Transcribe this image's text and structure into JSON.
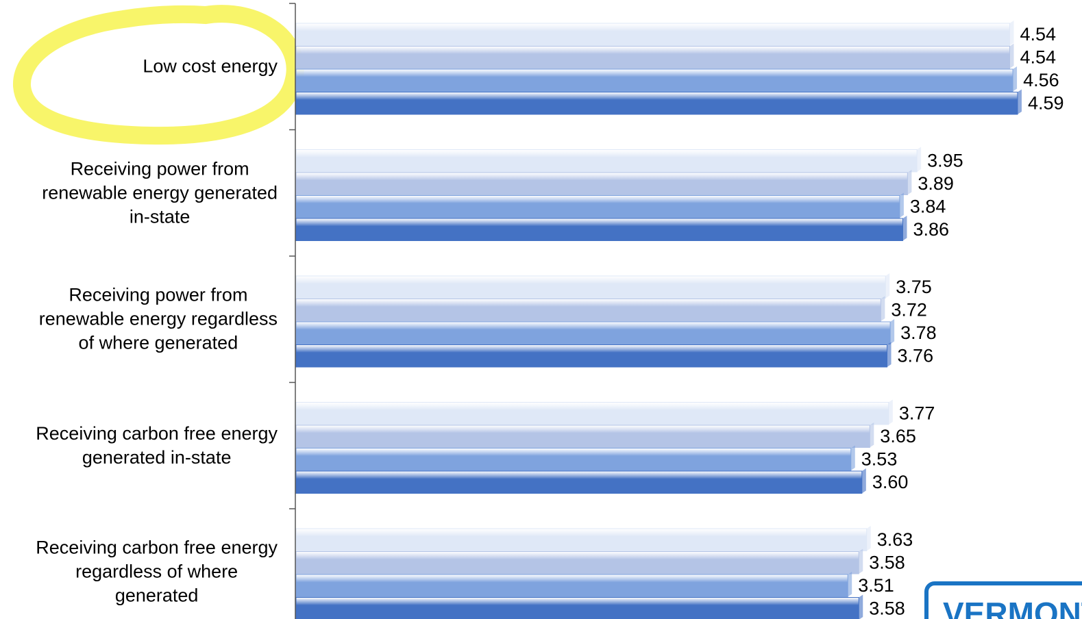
{
  "chart_data": {
    "type": "barh",
    "categories": [
      "Low cost energy",
      "Receiving power from\nrenewable energy generated\nin-state",
      "Receiving power from\nrenewable energy regardless\nof where generated",
      "Receiving carbon free energy\ngenerated in-state",
      "Receiving carbon free energy\nregardless of where\ngenerated"
    ],
    "series": [
      {
        "color": "#dfe8f7",
        "values": [
          4.54,
          3.95,
          3.75,
          3.77,
          3.63
        ],
        "value_labels": [
          "4.54",
          "3.95",
          "3.75",
          "3.77",
          "3.63"
        ]
      },
      {
        "color": "#b4c4e6",
        "values": [
          4.54,
          3.89,
          3.72,
          3.65,
          3.58
        ],
        "value_labels": [
          "4.54",
          "3.89",
          "3.72",
          "3.65",
          "3.58"
        ]
      },
      {
        "color": "#7fa3de",
        "values": [
          4.56,
          3.84,
          3.78,
          3.53,
          3.51
        ],
        "value_labels": [
          "4.56",
          "3.84",
          "3.78",
          "3.53",
          "3.51"
        ]
      },
      {
        "color": "#4472c4",
        "values": [
          4.59,
          3.86,
          3.76,
          3.6,
          3.58
        ],
        "value_labels": [
          "4.59",
          "3.86",
          "3.76",
          "3.60",
          "3.58"
        ]
      }
    ],
    "xlim": [
      0,
      5
    ],
    "logo_text": "VERMONT"
  }
}
